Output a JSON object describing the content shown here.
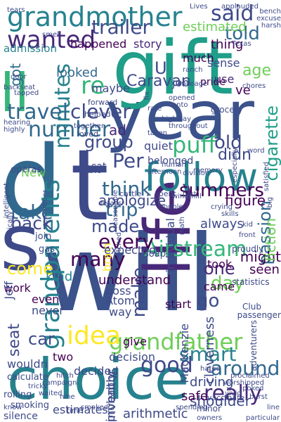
{
  "words": [
    {
      "text": "will",
      "color": "#3b528b"
    },
    {
      "text": "year",
      "color": "#3b528b"
    },
    {
      "text": "gift",
      "color": "#1f9e89"
    },
    {
      "text": "d",
      "color": "#31688e"
    },
    {
      "text": "t",
      "color": "#3e4a89"
    },
    {
      "text": "s",
      "color": "#3e4a89"
    },
    {
      "text": "choice",
      "color": "#26828e"
    },
    {
      "text": "life",
      "color": "#482878"
    },
    {
      "text": "ll",
      "color": "#35b779"
    },
    {
      "text": "follow",
      "color": "#26828e"
    },
    {
      "text": "grandmother",
      "color": "#26828e"
    },
    {
      "text": "grandfather",
      "color": "#6ece58"
    },
    {
      "text": "grandparents",
      "color": "#26828e"
    },
    {
      "text": "Airstream",
      "color": "#35b779"
    },
    {
      "text": "idea",
      "color": "#fde725"
    },
    {
      "text": "wanted",
      "color": "#482878"
    },
    {
      "text": "number",
      "color": "#31688e"
    },
    {
      "text": "said",
      "color": "#3e4a89"
    },
    {
      "text": "trailer",
      "color": "#3e4a89"
    },
    {
      "text": "minutes",
      "color": "#26828e"
    },
    {
      "text": "told",
      "color": "#31688e"
    },
    {
      "text": "re",
      "color": "#35b779"
    },
    {
      "text": "Per",
      "color": "#3e4a89"
    },
    {
      "text": "clever",
      "color": "#3e4a89"
    },
    {
      "text": "travel",
      "color": "#31688e"
    },
    {
      "text": "puff",
      "color": "#35b779"
    },
    {
      "text": "cigarette",
      "color": "#1f9e89"
    },
    {
      "text": "passion",
      "color": "#31688e"
    },
    {
      "text": "smart",
      "color": "#26828e"
    },
    {
      "text": "car",
      "color": "#3e4a89"
    },
    {
      "text": "take",
      "color": "#31688e"
    },
    {
      "text": "back",
      "color": "#3e4a89"
    },
    {
      "text": "trip",
      "color": "#31688e"
    },
    {
      "text": "made",
      "color": "#3e4a89"
    },
    {
      "text": "every",
      "color": "#440154"
    },
    {
      "text": "many",
      "color": "#440154"
    },
    {
      "text": "come",
      "color": "#fde725"
    },
    {
      "text": "day",
      "color": "#6ece58"
    },
    {
      "text": "one",
      "color": "#482878"
    },
    {
      "text": "around",
      "color": "#31688e"
    },
    {
      "text": "really",
      "color": "#482878"
    },
    {
      "text": "good",
      "color": "#3e4a89"
    },
    {
      "text": "think",
      "color": "#31688e"
    },
    {
      "text": "summers",
      "color": "#440154"
    },
    {
      "text": "make",
      "color": "#3e4a89"
    },
    {
      "text": "go",
      "color": "#3e4a89"
    },
    {
      "text": "Caravan",
      "color": "#3e4a89"
    },
    {
      "text": "looked",
      "color": "#31688e"
    },
    {
      "text": "old",
      "color": "#3e4a89"
    },
    {
      "text": "didn",
      "color": "#3e4a89"
    },
    {
      "text": "group",
      "color": "#3e4a89"
    },
    {
      "text": "estimated",
      "color": "#6ece58"
    },
    {
      "text": "admission",
      "color": "#26828e"
    },
    {
      "text": "happened",
      "color": "#440154"
    },
    {
      "text": "story",
      "color": "#482878"
    },
    {
      "text": "thing",
      "color": "#440154"
    },
    {
      "text": "age",
      "color": "#6ece58"
    },
    {
      "text": "much",
      "color": "#440154"
    },
    {
      "text": "got",
      "color": "#31688e"
    },
    {
      "text": "maybe",
      "color": "#3e4a89"
    },
    {
      "text": "ad",
      "color": "#482878"
    },
    {
      "text": "job",
      "color": "#3e4a89"
    },
    {
      "text": "pride",
      "color": "#440154"
    },
    {
      "text": "sense",
      "color": "#3e4a89"
    },
    {
      "text": "use",
      "color": "#482878"
    },
    {
      "text": "ve",
      "color": "#440154"
    },
    {
      "text": "U",
      "color": "#3e4a89"
    },
    {
      "text": "apologize",
      "color": "#3e4a89"
    },
    {
      "text": "quiet",
      "color": "#3e4a89"
    },
    {
      "text": "sat",
      "color": "#3e4a89"
    },
    {
      "text": "bit",
      "color": "#3e4a89"
    },
    {
      "text": "seat",
      "color": "#3e4a89"
    },
    {
      "text": "kind",
      "color": "#26828e"
    },
    {
      "text": "work",
      "color": "#440154"
    },
    {
      "text": "even",
      "color": "#440154"
    },
    {
      "text": "never",
      "color": "#3e4a89"
    },
    {
      "text": "two",
      "color": "#440154"
    },
    {
      "text": "decided",
      "color": "#3e4a89"
    },
    {
      "text": "wouldn",
      "color": "#3e4a89"
    },
    {
      "text": "silence",
      "color": "#3e4a89"
    },
    {
      "text": "estimates",
      "color": "#3e4a89"
    },
    {
      "text": "arithmetic",
      "color": "#3e4a89"
    },
    {
      "text": "shoulder",
      "color": "#3e4a89"
    },
    {
      "text": "safe",
      "color": "#440154"
    },
    {
      "text": "driving",
      "color": "#3e4a89"
    },
    {
      "text": "cleverness",
      "color": "#3e4a89"
    },
    {
      "text": "inventor",
      "color": "#3e4a89"
    },
    {
      "text": "figure",
      "color": "#440154"
    },
    {
      "text": "might",
      "color": "#440154"
    },
    {
      "text": "seen",
      "color": "#440154"
    },
    {
      "text": "took",
      "color": "#440154"
    },
    {
      "text": "came",
      "color": "#440154"
    },
    {
      "text": "MacKenzie",
      "color": "#3e4a89"
    },
    {
      "text": "Atom",
      "color": "#3e4a89"
    },
    {
      "text": "boss",
      "color": "#3e4a89"
    },
    {
      "text": "way",
      "color": "#3e4a89"
    },
    {
      "text": "understand",
      "color": "#440154"
    },
    {
      "text": "start",
      "color": "#440154"
    },
    {
      "text": "give",
      "color": "#440154"
    },
    {
      "text": "decision",
      "color": "#3e4a89"
    },
    {
      "text": "probably",
      "color": "#3e4a89"
    },
    {
      "text": "individual",
      "color": "#3e4a89"
    },
    {
      "text": "brain",
      "color": "#fde725"
    },
    {
      "text": "expected",
      "color": "#3e4a89"
    },
    {
      "text": "Jeff",
      "color": "#3e4a89"
    },
    {
      "text": "New",
      "color": "#6ece58"
    },
    {
      "text": "always",
      "color": "#3e4a89"
    },
    {
      "text": "fiction",
      "color": "#6ece58"
    },
    {
      "text": "belonged",
      "color": "#3e4a89"
    },
    {
      "text": "smoking",
      "color": "#3e4a89"
    },
    {
      "text": "rolling",
      "color": "#3e4a89"
    },
    {
      "text": "calculate",
      "color": "#3e4a89"
    },
    {
      "text": "join",
      "color": "#3e4a89"
    },
    {
      "text": "gas",
      "color": "#3e4a89"
    },
    {
      "text": "Lives",
      "color": "#3e4a89"
    },
    {
      "text": "applauded",
      "color": "#3e4a89"
    },
    {
      "text": "bench",
      "color": "#3e4a89"
    },
    {
      "text": "excuse",
      "color": "#3e4a89"
    },
    {
      "text": "harsh",
      "color": "#3e4a89"
    },
    {
      "text": "Texas",
      "color": "#3e4a89"
    },
    {
      "text": "ranch",
      "color": "#3e4a89"
    },
    {
      "text": "chores",
      "color": "#3e4a89"
    },
    {
      "text": "grocery",
      "color": "#3e4a89"
    },
    {
      "text": "mileage",
      "color": "#3e4a89"
    },
    {
      "text": "forward",
      "color": "#3e4a89"
    },
    {
      "text": "helped",
      "color": "#3e4a89"
    },
    {
      "text": "together",
      "color": "#3e4a89"
    },
    {
      "text": "loved",
      "color": "#3e4a89"
    },
    {
      "text": "taken",
      "color": "#3e4a89"
    },
    {
      "text": "cattle",
      "color": "#3e4a89"
    },
    {
      "text": "spent",
      "color": "#3e4a89"
    },
    {
      "text": "afternoon",
      "color": "#3e4a89"
    },
    {
      "text": "details",
      "color": "#3e4a89"
    },
    {
      "text": "watched",
      "color": "#3e4a89"
    },
    {
      "text": "soap",
      "color": "#3e4a89"
    },
    {
      "text": "operas",
      "color": "#3e4a89"
    },
    {
      "text": "hearing",
      "color": "#3e4a89"
    },
    {
      "text": "highly",
      "color": "#3e4a89"
    },
    {
      "text": "smell",
      "color": "#3e4a89"
    },
    {
      "text": "door",
      "color": "#3e4a89"
    },
    {
      "text": "tapped",
      "color": "#3e4a89"
    },
    {
      "text": "backseat",
      "color": "#3e4a89"
    },
    {
      "text": "tears",
      "color": "#3e4a89"
    },
    {
      "text": "intelligent",
      "color": "#3e4a89"
    },
    {
      "text": "remember",
      "color": "#3e4a89"
    },
    {
      "text": "basically",
      "color": "#3e4a89"
    },
    {
      "text": "Club",
      "color": "#3e4a89"
    },
    {
      "text": "passenger",
      "color": "#3e4a89"
    },
    {
      "text": "adventurers",
      "color": "#3e4a89"
    },
    {
      "text": "statistics",
      "color": "#3e4a89"
    },
    {
      "text": "proudly",
      "color": "#3e4a89"
    },
    {
      "text": "front",
      "color": "#3e4a89"
    },
    {
      "text": "kid",
      "color": "#3e4a89"
    },
    {
      "text": "skills",
      "color": "#3e4a89"
    },
    {
      "text": "crying",
      "color": "#3e4a89"
    },
    {
      "text": "first",
      "color": "#3e4a89"
    },
    {
      "text": "trouble",
      "color": "#3e4a89"
    },
    {
      "text": "windmill",
      "color": "#3e4a89"
    },
    {
      "text": "math",
      "color": "#3e4a89"
    },
    {
      "text": "reasonable",
      "color": "#3e4a89"
    },
    {
      "text": "human",
      "color": "#3e4a89"
    },
    {
      "text": "memory",
      "color": "#3e4a89"
    },
    {
      "text": "division",
      "color": "#3e4a89"
    },
    {
      "text": "word",
      "color": "#3e4a89"
    },
    {
      "text": "big",
      "color": "#3e4a89"
    },
    {
      "text": "satisfied",
      "color": "#3e4a89"
    },
    {
      "text": "especially",
      "color": "#3e4a89"
    },
    {
      "text": "throughout",
      "color": "#3e4a89"
    },
    {
      "text": "highway",
      "color": "#3e4a89"
    },
    {
      "text": "opened",
      "color": "#3e4a89"
    },
    {
      "text": "onto",
      "color": "#3e4a89"
    },
    {
      "text": "rate",
      "color": "#3e4a89"
    },
    {
      "text": "fix",
      "color": "#3e4a89"
    },
    {
      "text": "minor",
      "color": "#3e4a89"
    },
    {
      "text": "vaccinate",
      "color": "#3e4a89"
    },
    {
      "text": "particular",
      "color": "#3e4a89"
    },
    {
      "text": "burst",
      "color": "#3e4a89"
    },
    {
      "text": "line",
      "color": "#3e4a89"
    },
    {
      "text": "poked",
      "color": "#3e4a89"
    },
    {
      "text": "vivid",
      "color": "#3e4a89"
    },
    {
      "text": "worshipped",
      "color": "#3e4a89"
    },
    {
      "text": "proclaimed",
      "color": "#3e4a89"
    },
    {
      "text": "owners",
      "color": "#3e4a89"
    },
    {
      "text": "spending",
      "color": "#3e4a89"
    },
    {
      "text": "nine",
      "color": "#3e4a89"
    },
    {
      "text": "smoked",
      "color": "#3e4a89"
    },
    {
      "text": "time",
      "color": "#3e4a89"
    },
    {
      "text": "waited",
      "color": "#3e4a89"
    },
    {
      "text": "tricky",
      "color": "#3e4a89"
    },
    {
      "text": "hitch",
      "color": "#3e4a89"
    },
    {
      "text": "campaign",
      "color": "#3e4a89"
    },
    {
      "text": "know",
      "color": "#3e4a89"
    },
    {
      "text": "hated",
      "color": "#3e4a89"
    },
    {
      "text": "Canada",
      "color": "#3e4a89"
    }
  ]
}
